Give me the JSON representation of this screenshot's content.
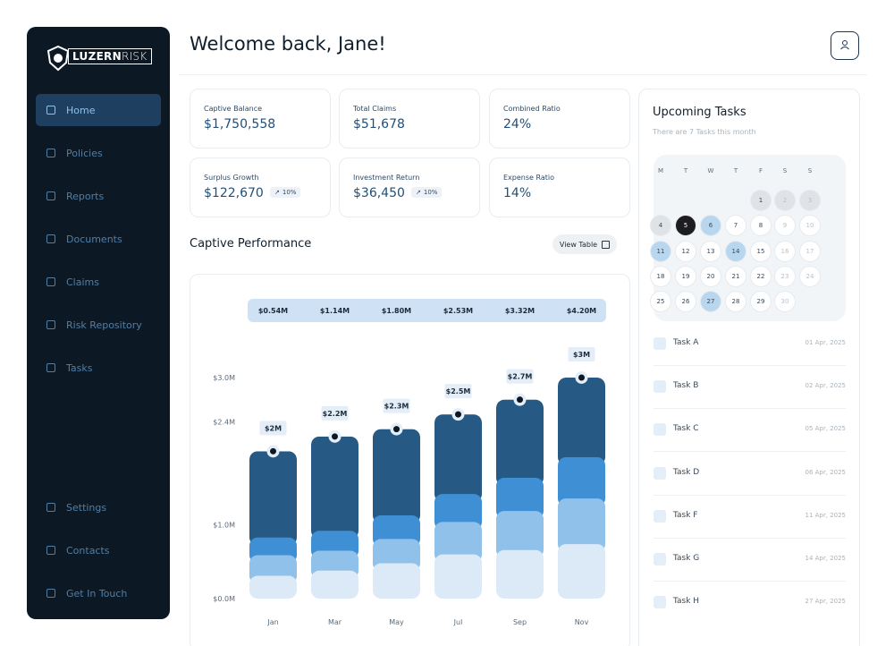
{
  "brand": {
    "bold": "LUZERN",
    "light": "RISK"
  },
  "nav": [
    {
      "label": "Home",
      "active": true
    },
    {
      "label": "Policies"
    },
    {
      "label": "Reports"
    },
    {
      "label": "Documents"
    },
    {
      "label": "Claims"
    },
    {
      "label": "Risk Repository"
    },
    {
      "label": "Tasks"
    }
  ],
  "nav_bottom": [
    {
      "label": "Settings"
    },
    {
      "label": "Contacts"
    },
    {
      "label": "Get In Touch"
    }
  ],
  "header": {
    "title": "Welcome back, Jane!"
  },
  "kpis": [
    {
      "label": "Captive Balance",
      "value": "$1,750,558"
    },
    {
      "label": "Total Claims",
      "value": "$51,678"
    },
    {
      "label": "Combined Ratio",
      "value": "24%"
    },
    {
      "label": "Surplus Growth",
      "value": "$122,670",
      "change": "10%"
    },
    {
      "label": "Investment Return",
      "value": "$36,450",
      "change": "10%"
    },
    {
      "label": "Expense Ratio",
      "value": "14%"
    }
  ],
  "performance": {
    "title": "Captive Performance",
    "button": "View Table"
  },
  "chart_data": {
    "type": "stacked_bar",
    "categories": [
      "Jan",
      "Mar",
      "May",
      "Jul",
      "Sep",
      "Nov"
    ],
    "summary_labels": [
      "$0.54M",
      "$1.14M",
      "$1.80M",
      "$2.53M",
      "$3.32M",
      "$4.20M"
    ],
    "series": [
      {
        "color": "#dce9f7",
        "values": [
          0.2,
          0.27,
          0.37,
          0.49,
          0.55,
          0.63
        ]
      },
      {
        "color": "#90c1ea",
        "values": [
          0.28,
          0.27,
          0.33,
          0.44,
          0.53,
          0.62
        ]
      },
      {
        "color": "#3f8fd4",
        "values": [
          0.24,
          0.27,
          0.32,
          0.38,
          0.45,
          0.56
        ]
      },
      {
        "color": "#265a85",
        "values": [
          1.28,
          1.39,
          1.28,
          1.19,
          1.17,
          1.19
        ]
      }
    ],
    "totals": {
      "values": [
        2,
        2.2,
        2.3,
        2.5,
        2.7,
        3
      ],
      "value_labels": [
        "$2M",
        "$2.2M",
        "$2.3M",
        "$2.5M",
        "$2.7M",
        "$3M"
      ]
    },
    "ylim": [
      0,
      3.5
    ],
    "yticks": [
      {
        "value": 0,
        "label": "$0.0M"
      },
      {
        "value": 1,
        "label": "$1.0M"
      },
      {
        "value": 2.4,
        "label": "$2.4M"
      },
      {
        "value": 3,
        "label": "$3.0M"
      }
    ],
    "grid": false
  },
  "tasks_panel": {
    "title": "Upcoming Tasks",
    "subtitle": "There are 7 Tasks this month",
    "weekdays": [
      "M",
      "T",
      "W",
      "T",
      "F",
      "S",
      "S"
    ],
    "weeks": [
      [
        null,
        null,
        null,
        null,
        1,
        2,
        3
      ],
      [
        4,
        5,
        6,
        7,
        8,
        9,
        10
      ],
      [
        11,
        12,
        13,
        14,
        15,
        16,
        17
      ],
      [
        18,
        19,
        20,
        21,
        22,
        23,
        24
      ],
      [
        25,
        26,
        27,
        28,
        29,
        30,
        null
      ]
    ],
    "today": 5,
    "task_days": [
      6,
      11,
      14,
      27
    ],
    "past_days": [
      1,
      2,
      3,
      4
    ],
    "tasks": [
      {
        "name": "Task A",
        "date": "01 Apr, 2025"
      },
      {
        "name": "Task B",
        "date": "02 Apr, 2025"
      },
      {
        "name": "Task C",
        "date": "05 Apr, 2025"
      },
      {
        "name": "Task D",
        "date": "06 Apr, 2025"
      },
      {
        "name": "Task F",
        "date": "11 Apr, 2025"
      },
      {
        "name": "Task G",
        "date": "14 Apr, 2025"
      },
      {
        "name": "Task H",
        "date": "27 Apr, 2025"
      }
    ]
  }
}
